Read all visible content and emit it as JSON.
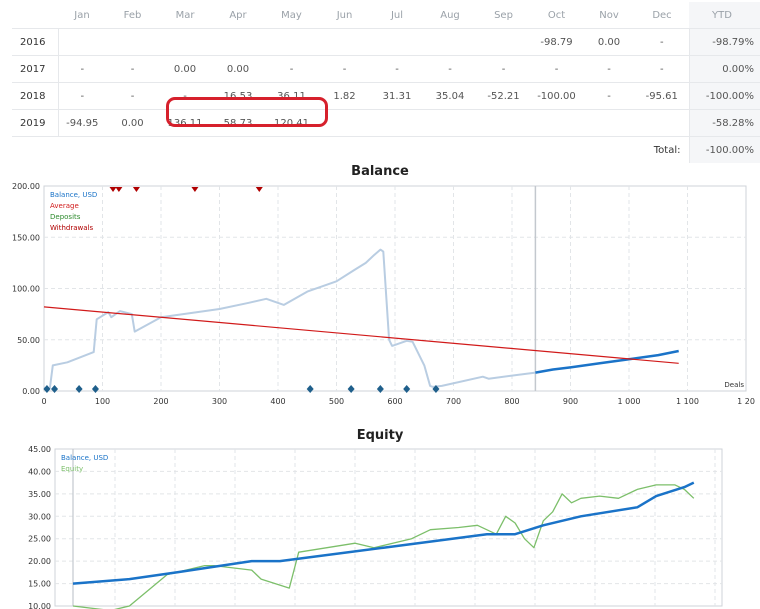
{
  "table": {
    "headers": [
      "",
      "Jan",
      "Feb",
      "Mar",
      "Apr",
      "May",
      "Jun",
      "Jul",
      "Aug",
      "Sep",
      "Oct",
      "Nov",
      "Dec",
      "YTD"
    ],
    "rows": [
      {
        "year": "2016",
        "cells": [
          "",
          "",
          "",
          "",
          "",
          "",
          "",
          "",
          "",
          "-98.79",
          "0.00",
          "-"
        ],
        "ytd": "-98.79%"
      },
      {
        "year": "2017",
        "cells": [
          "-",
          "-",
          "0.00",
          "0.00",
          "-",
          "-",
          "-",
          "-",
          "-",
          "-",
          "-",
          "-"
        ],
        "ytd": "0.00%"
      },
      {
        "year": "2018",
        "cells": [
          "-",
          "-",
          "-",
          "16.53",
          "36.11",
          "1.82",
          "31.31",
          "35.04",
          "-52.21",
          "-100.00",
          "-",
          "-95.61"
        ],
        "ytd": "-100.00%"
      },
      {
        "year": "2019",
        "cells": [
          "-94.95",
          "0.00",
          "136.11",
          "58.73",
          "120.41",
          "",
          "",
          "",
          "",
          "",
          "",
          ""
        ],
        "ytd": "-58.28%"
      }
    ],
    "total_label": "Total:",
    "total_value": "-100.00%"
  },
  "colors": {
    "balance_line": "#1a73c8",
    "balance_history": "#b9cde2",
    "average": "#d11a1a",
    "deposits": "#2e8b2e",
    "withdrawals": "#b00000",
    "equity": "#7cbf6a",
    "marker": "#1f5f8b"
  },
  "chart_data": [
    {
      "type": "line",
      "title": "Balance",
      "xlabel": "Deals",
      "ylabel": "",
      "xlim": [
        0,
        1200
      ],
      "ylim": [
        0,
        200
      ],
      "x_ticks": [
        "0",
        "100",
        "200",
        "300",
        "400",
        "500",
        "600",
        "700",
        "800",
        "900",
        "1 000",
        "1 100",
        "1 20"
      ],
      "y_ticks": [
        "0.00",
        "50.00",
        "100.00",
        "150.00",
        "200.00"
      ],
      "legend": [
        "Balance, USD",
        "Average",
        "Deposits",
        "Withdrawals"
      ],
      "legend_position": "top-left",
      "grid": true,
      "series": [
        {
          "name": "Balance, USD",
          "x": [
            0,
            10,
            15,
            40,
            85,
            90,
            110,
            115,
            130,
            150,
            155,
            200,
            250,
            300,
            350,
            380,
            410,
            450,
            500,
            530,
            550,
            565,
            575,
            580,
            590,
            595,
            620,
            630,
            650,
            660,
            665,
            680,
            750,
            760,
            840
          ],
          "y": [
            3,
            3,
            25,
            28,
            38,
            70,
            77,
            72,
            78,
            75,
            58,
            72,
            76,
            80,
            86,
            90,
            84,
            97,
            107,
            118,
            125,
            133,
            138,
            136,
            50,
            44,
            49,
            48,
            25,
            5,
            4,
            5,
            14,
            12,
            18
          ]
        },
        {
          "name": "Balance, USD",
          "x": [
            840,
            870,
            900,
            950,
            1000,
            1050,
            1085
          ],
          "y": [
            18,
            21,
            23,
            27,
            31,
            35,
            39
          ]
        },
        {
          "name": "Average",
          "x": [
            0,
            1085
          ],
          "y": [
            82,
            27
          ]
        }
      ],
      "withdrawal_markers_x": [
        118,
        128,
        158,
        258,
        368
      ],
      "deposit_markers_x": [
        5,
        18,
        60,
        88,
        455,
        525,
        575,
        620,
        670
      ]
    },
    {
      "type": "line",
      "title": "Equity",
      "xlabel": "",
      "ylabel": "",
      "ylim": [
        10,
        45
      ],
      "y_ticks": [
        "10.00",
        "15.00",
        "20.00",
        "25.00",
        "30.00",
        "35.00",
        "40.00",
        "45.00"
      ],
      "legend": [
        "Balance, USD",
        "Equity"
      ],
      "legend_position": "top-left",
      "grid": true,
      "series": [
        {
          "name": "Balance, USD",
          "x": [
            0,
            60,
            110,
            190,
            220,
            330,
            440,
            470,
            500,
            540,
            600,
            620,
            650,
            660
          ],
          "y": [
            15,
            16,
            17.5,
            20,
            20,
            23,
            26,
            26,
            28,
            30,
            32,
            34.5,
            36.5,
            37.5
          ]
        },
        {
          "name": "Equity",
          "x": [
            0,
            40,
            60,
            100,
            110,
            140,
            150,
            190,
            200,
            230,
            240,
            300,
            320,
            360,
            380,
            410,
            430,
            450,
            460,
            470,
            480,
            490,
            500,
            510,
            520,
            530,
            540,
            560,
            580,
            600,
            620,
            640,
            650,
            660
          ],
          "y": [
            10,
            9,
            10,
            17,
            17.5,
            19,
            19,
            18,
            16,
            14,
            22,
            24,
            23,
            25,
            27,
            27.5,
            28,
            26,
            30,
            28.5,
            25,
            23,
            29,
            31,
            35,
            33,
            34,
            34.5,
            34,
            36,
            37,
            37,
            36,
            34
          ]
        }
      ]
    }
  ]
}
